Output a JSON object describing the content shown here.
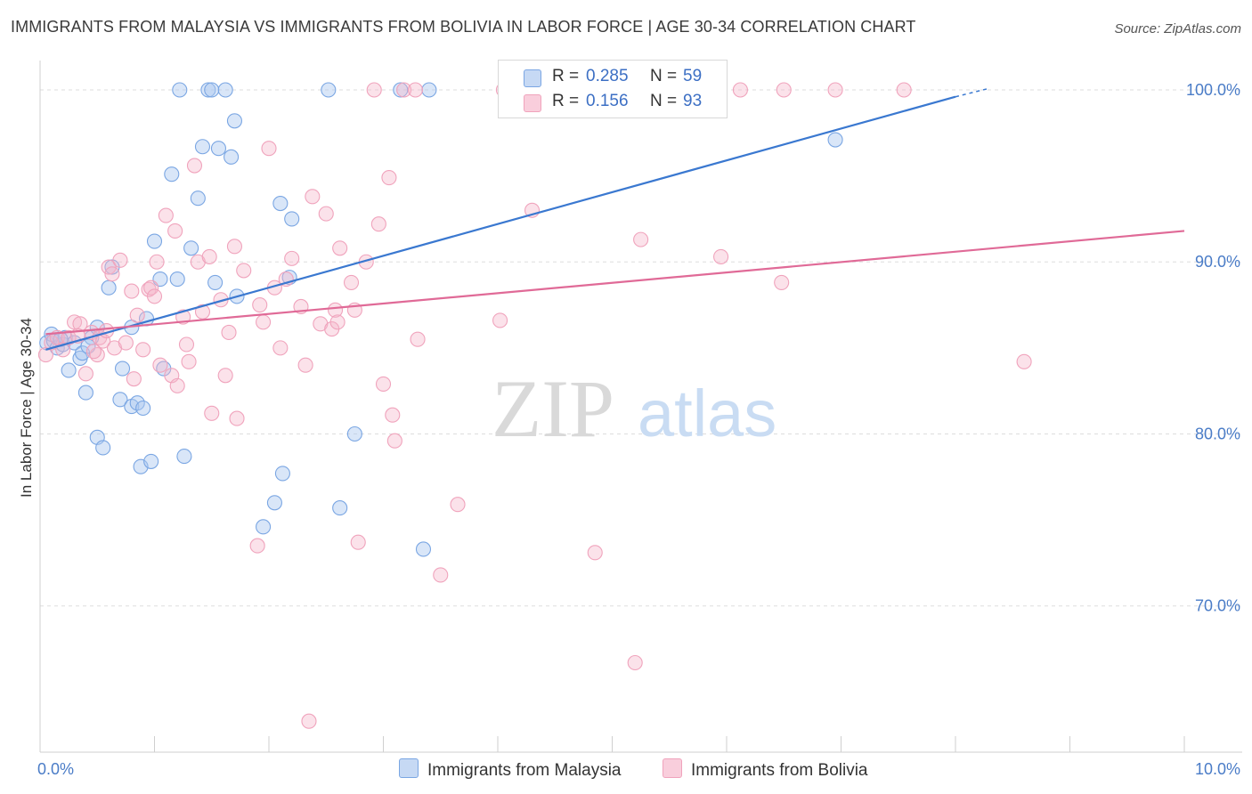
{
  "header": {
    "title": "IMMIGRANTS FROM MALAYSIA VS IMMIGRANTS FROM BOLIVIA IN LABOR FORCE | AGE 30-34 CORRELATION CHART",
    "source": "Source: ZipAtlas.com"
  },
  "watermark": {
    "zip": "ZIP",
    "atlas": "atlas"
  },
  "legend": {
    "rows": [
      {
        "r_label": "R =",
        "r_value": "0.285",
        "n_label": "N =",
        "n_value": "59",
        "color": "#aac7ef"
      },
      {
        "r_label": "R =",
        "r_value": "0.156",
        "n_label": "N =",
        "n_value": "93",
        "color": "#f4b6cb"
      }
    ]
  },
  "bottom_legend": {
    "malaysia": "Immigrants from Malaysia",
    "bolivia": "Immigrants from Bolivia"
  },
  "chart_data": {
    "type": "scatter",
    "title": "IMMIGRANTS FROM MALAYSIA VS IMMIGRANTS FROM BOLIVIA IN LABOR FORCE | AGE 30-34 CORRELATION CHART",
    "xlabel": "",
    "ylabel": "In Labor Force | Age 30-34",
    "xlim": [
      0,
      10
    ],
    "ylim": [
      61.5,
      101.5
    ],
    "x_tick_labels": [
      "0.0%",
      "10.0%"
    ],
    "y_ticks": [
      70,
      80,
      90,
      100
    ],
    "y_tick_labels": [
      "70.0%",
      "80.0%",
      "90.0%",
      "100.0%"
    ],
    "grid": true,
    "series": [
      {
        "name": "Immigrants from Malaysia",
        "color": "#7aa6e3",
        "line_color": "#3a78d0",
        "trend": {
          "x": [
            0.05,
            8.0
          ],
          "y": [
            84.9,
            99.6
          ],
          "dash_to": [
            8.3,
            100.1
          ]
        },
        "points": [
          [
            0.06,
            85.3
          ],
          [
            0.1,
            85.8
          ],
          [
            0.12,
            85.4
          ],
          [
            0.15,
            85.0
          ],
          [
            0.2,
            85.2
          ],
          [
            0.22,
            85.6
          ],
          [
            0.25,
            83.7
          ],
          [
            0.3,
            85.3
          ],
          [
            0.35,
            84.4
          ],
          [
            0.37,
            84.7
          ],
          [
            0.4,
            82.4
          ],
          [
            0.45,
            85.6
          ],
          [
            0.5,
            86.2
          ],
          [
            0.5,
            79.8
          ],
          [
            0.55,
            79.2
          ],
          [
            0.6,
            88.5
          ],
          [
            0.63,
            89.7
          ],
          [
            0.7,
            82.0
          ],
          [
            0.72,
            83.8
          ],
          [
            0.8,
            86.2
          ],
          [
            0.8,
            81.6
          ],
          [
            0.85,
            81.8
          ],
          [
            0.88,
            78.1
          ],
          [
            0.9,
            81.5
          ],
          [
            0.93,
            86.7
          ],
          [
            0.97,
            78.4
          ],
          [
            1.0,
            91.2
          ],
          [
            1.05,
            89.0
          ],
          [
            1.08,
            83.8
          ],
          [
            1.15,
            95.1
          ],
          [
            1.2,
            89.0
          ],
          [
            1.22,
            100.0
          ],
          [
            1.26,
            78.7
          ],
          [
            1.32,
            90.8
          ],
          [
            1.38,
            93.7
          ],
          [
            1.42,
            96.7
          ],
          [
            1.47,
            100.0
          ],
          [
            1.5,
            100.0
          ],
          [
            1.53,
            88.8
          ],
          [
            1.56,
            96.6
          ],
          [
            1.62,
            100.0
          ],
          [
            1.67,
            96.1
          ],
          [
            1.7,
            98.2
          ],
          [
            1.72,
            88.0
          ],
          [
            1.95,
            74.6
          ],
          [
            2.05,
            76.0
          ],
          [
            2.1,
            93.4
          ],
          [
            2.12,
            77.7
          ],
          [
            2.18,
            89.1
          ],
          [
            2.2,
            92.5
          ],
          [
            2.52,
            100.0
          ],
          [
            2.62,
            75.7
          ],
          [
            2.75,
            80.0
          ],
          [
            3.15,
            100.0
          ],
          [
            3.35,
            73.3
          ],
          [
            3.4,
            100.0
          ],
          [
            6.95,
            97.1
          ],
          [
            0.18,
            85.5
          ],
          [
            0.42,
            85.1
          ]
        ]
      },
      {
        "name": "Immigrants from Bolivia",
        "color": "#f0a3bc",
        "line_color": "#e06a97",
        "trend": {
          "x": [
            0.05,
            10.0
          ],
          "y": [
            85.8,
            91.8
          ]
        },
        "points": [
          [
            0.05,
            84.6
          ],
          [
            0.1,
            85.3
          ],
          [
            0.15,
            85.6
          ],
          [
            0.2,
            84.9
          ],
          [
            0.25,
            85.6
          ],
          [
            0.3,
            86.5
          ],
          [
            0.35,
            86.4
          ],
          [
            0.4,
            83.5
          ],
          [
            0.45,
            85.9
          ],
          [
            0.5,
            84.6
          ],
          [
            0.52,
            85.6
          ],
          [
            0.55,
            85.4
          ],
          [
            0.6,
            89.7
          ],
          [
            0.63,
            89.3
          ],
          [
            0.65,
            85.0
          ],
          [
            0.7,
            90.1
          ],
          [
            0.75,
            85.3
          ],
          [
            0.8,
            88.3
          ],
          [
            0.82,
            83.2
          ],
          [
            0.85,
            86.9
          ],
          [
            0.9,
            84.9
          ],
          [
            0.95,
            88.4
          ],
          [
            0.97,
            88.5
          ],
          [
            1.0,
            88.0
          ],
          [
            1.02,
            90.0
          ],
          [
            1.05,
            84.0
          ],
          [
            1.1,
            92.7
          ],
          [
            1.15,
            83.4
          ],
          [
            1.18,
            91.8
          ],
          [
            1.2,
            82.8
          ],
          [
            1.25,
            86.8
          ],
          [
            1.28,
            85.2
          ],
          [
            1.35,
            95.6
          ],
          [
            1.38,
            90.0
          ],
          [
            1.42,
            87.1
          ],
          [
            1.48,
            90.3
          ],
          [
            1.5,
            81.2
          ],
          [
            1.58,
            87.8
          ],
          [
            1.62,
            83.4
          ],
          [
            1.65,
            85.9
          ],
          [
            1.7,
            90.9
          ],
          [
            1.72,
            80.9
          ],
          [
            1.78,
            89.5
          ],
          [
            1.9,
            73.5
          ],
          [
            1.92,
            87.5
          ],
          [
            1.95,
            86.5
          ],
          [
            2.0,
            96.6
          ],
          [
            2.05,
            88.5
          ],
          [
            2.1,
            85.0
          ],
          [
            2.15,
            89.0
          ],
          [
            2.2,
            90.2
          ],
          [
            2.28,
            87.4
          ],
          [
            2.32,
            84.0
          ],
          [
            2.35,
            63.3
          ],
          [
            2.38,
            93.8
          ],
          [
            2.45,
            86.4
          ],
          [
            2.5,
            92.8
          ],
          [
            2.55,
            86.1
          ],
          [
            2.58,
            87.2
          ],
          [
            2.6,
            86.5
          ],
          [
            2.62,
            90.8
          ],
          [
            2.72,
            88.8
          ],
          [
            2.75,
            87.2
          ],
          [
            2.78,
            73.7
          ],
          [
            2.85,
            90.0
          ],
          [
            2.92,
            100.0
          ],
          [
            2.96,
            92.2
          ],
          [
            3.0,
            82.9
          ],
          [
            3.05,
            94.9
          ],
          [
            3.08,
            81.1
          ],
          [
            3.1,
            79.6
          ],
          [
            3.18,
            100.0
          ],
          [
            3.28,
            100.0
          ],
          [
            3.3,
            85.5
          ],
          [
            3.5,
            71.8
          ],
          [
            3.65,
            75.9
          ],
          [
            4.02,
            86.6
          ],
          [
            4.05,
            100.0
          ],
          [
            4.3,
            93.0
          ],
          [
            4.85,
            73.1
          ],
          [
            5.2,
            66.7
          ],
          [
            5.25,
            91.3
          ],
          [
            5.95,
            90.3
          ],
          [
            6.12,
            100.0
          ],
          [
            6.48,
            88.8
          ],
          [
            6.5,
            100.0
          ],
          [
            6.95,
            100.0
          ],
          [
            7.55,
            100.0
          ],
          [
            8.6,
            84.2
          ],
          [
            0.33,
            85.7
          ],
          [
            0.47,
            84.8
          ],
          [
            0.58,
            86.0
          ],
          [
            1.3,
            84.2
          ]
        ]
      }
    ]
  }
}
